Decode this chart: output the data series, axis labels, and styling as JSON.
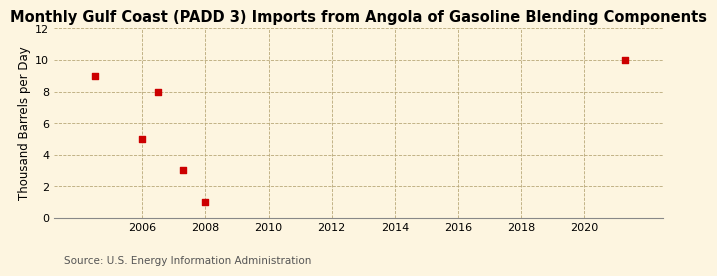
{
  "title": "Monthly Gulf Coast (PADD 3) Imports from Angola of Gasoline Blending Components",
  "ylabel": "Thousand Barrels per Day",
  "source": "Source: U.S. Energy Information Administration",
  "x_data": [
    2004.5,
    2006.0,
    2006.5,
    2007.3,
    2008.0,
    2021.3
  ],
  "y_data": [
    9,
    5,
    8,
    3,
    1,
    10
  ],
  "marker_color": "#cc0000",
  "marker_size": 4,
  "xlim": [
    2003.2,
    2022.5
  ],
  "ylim": [
    0,
    12
  ],
  "yticks": [
    0,
    2,
    4,
    6,
    8,
    10,
    12
  ],
  "xticks": [
    2006,
    2008,
    2010,
    2012,
    2014,
    2016,
    2018,
    2020
  ],
  "background_color": "#fdf5e0",
  "grid_color": "#b8a878",
  "title_fontsize": 10.5,
  "ylabel_fontsize": 8.5,
  "tick_fontsize": 8,
  "source_fontsize": 7.5
}
